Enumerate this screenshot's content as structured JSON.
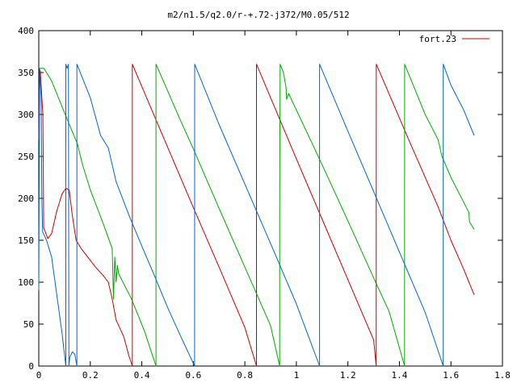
{
  "chart_data": {
    "type": "line",
    "title": "m2/n1.5/q2.0/r-+.72-j372/M0.05/512",
    "xlabel": "",
    "ylabel": "",
    "xlim": [
      0,
      1.8
    ],
    "ylim": [
      0,
      400
    ],
    "x_ticks": [
      0,
      0.2,
      0.4,
      0.6,
      0.8,
      1,
      1.2,
      1.4,
      1.6,
      1.8
    ],
    "x_tick_labels": [
      "0",
      "0.2",
      "0.4",
      "0.6",
      "0.8",
      "1",
      "1.2",
      "1.4",
      "1.6",
      "1.8"
    ],
    "y_ticks": [
      0,
      50,
      100,
      150,
      200,
      250,
      300,
      350,
      400
    ],
    "y_tick_labels": [
      "0",
      "50",
      "100",
      "150",
      "200",
      "250",
      "300",
      "350",
      "400"
    ],
    "grid": false,
    "legend": {
      "position": "top-right",
      "entries": [
        "fort.23"
      ]
    },
    "series": [
      {
        "name": "fort.23",
        "color": "#cc0000",
        "points": [
          [
            0.0,
            270
          ],
          [
            0.003,
            340
          ],
          [
            0.006,
            352
          ],
          [
            0.012,
            320
          ],
          [
            0.016,
            300
          ],
          [
            0.019,
            165
          ],
          [
            0.025,
            160
          ],
          [
            0.035,
            152
          ],
          [
            0.05,
            158
          ],
          [
            0.07,
            185
          ],
          [
            0.09,
            205
          ],
          [
            0.105,
            212
          ],
          [
            0.118,
            210
          ],
          [
            0.13,
            180
          ],
          [
            0.145,
            150
          ],
          [
            0.165,
            140
          ],
          [
            0.19,
            130
          ],
          [
            0.22,
            118
          ],
          [
            0.25,
            108
          ],
          [
            0.27,
            100
          ],
          [
            0.285,
            80
          ],
          [
            0.3,
            55
          ],
          [
            0.33,
            35
          ],
          [
            0.35,
            12
          ],
          [
            0.363,
            0
          ],
          [
            0.3631,
            360
          ],
          [
            0.46,
            290
          ],
          [
            0.6,
            189
          ],
          [
            0.7,
            118
          ],
          [
            0.8,
            46
          ],
          [
            0.845,
            0
          ],
          [
            0.8451,
            360
          ],
          [
            1.0,
            247
          ],
          [
            1.1,
            175
          ],
          [
            1.2,
            103
          ],
          [
            1.3,
            31
          ],
          [
            1.31,
            0
          ],
          [
            1.3101,
            360
          ],
          [
            1.45,
            260
          ],
          [
            1.55,
            190
          ],
          [
            1.6,
            150
          ],
          [
            1.65,
            115
          ],
          [
            1.69,
            85
          ]
        ]
      },
      {
        "color": "#00aa00",
        "points": [
          [
            0.0,
            355
          ],
          [
            0.02,
            355
          ],
          [
            0.05,
            340
          ],
          [
            0.1,
            302
          ],
          [
            0.15,
            265
          ],
          [
            0.17,
            240
          ],
          [
            0.2,
            210
          ],
          [
            0.25,
            170
          ],
          [
            0.285,
            140
          ],
          [
            0.29,
            80
          ],
          [
            0.295,
            130
          ],
          [
            0.3,
            100
          ],
          [
            0.305,
            120
          ],
          [
            0.31,
            110
          ],
          [
            0.36,
            80
          ],
          [
            0.41,
            42
          ],
          [
            0.455,
            0
          ],
          [
            0.4551,
            360
          ],
          [
            0.55,
            293
          ],
          [
            0.6,
            259
          ],
          [
            0.7,
            188
          ],
          [
            0.8,
            118
          ],
          [
            0.9,
            48
          ],
          [
            0.935,
            0
          ],
          [
            0.9351,
            180
          ],
          [
            0.937,
            360
          ],
          [
            0.95,
            350
          ],
          [
            0.96,
            332
          ],
          [
            0.962,
            318
          ],
          [
            0.97,
            325
          ],
          [
            1.1,
            240
          ],
          [
            1.2,
            173
          ],
          [
            1.3,
            105
          ],
          [
            1.36,
            65
          ],
          [
            1.42,
            0
          ],
          [
            1.4201,
            360
          ],
          [
            1.5,
            300
          ],
          [
            1.55,
            270
          ],
          [
            1.565,
            250
          ],
          [
            1.6,
            225
          ],
          [
            1.65,
            195
          ],
          [
            1.67,
            183
          ],
          [
            1.672,
            172
          ],
          [
            1.69,
            163
          ]
        ]
      },
      {
        "color": "#0066cc",
        "points": [
          [
            0.0,
            90
          ],
          [
            0.003,
            355
          ],
          [
            0.006,
            340
          ],
          [
            0.009,
            320
          ],
          [
            0.012,
            200
          ],
          [
            0.015,
            160
          ],
          [
            0.03,
            150
          ],
          [
            0.05,
            130
          ],
          [
            0.07,
            85
          ],
          [
            0.09,
            40
          ],
          [
            0.105,
            0
          ],
          [
            0.1051,
            360
          ],
          [
            0.11,
            355
          ],
          [
            0.115,
            360
          ],
          [
            0.117,
            0
          ],
          [
            0.12,
            10
          ],
          [
            0.13,
            17
          ],
          [
            0.14,
            14
          ],
          [
            0.148,
            0
          ],
          [
            0.1481,
            360
          ],
          [
            0.2,
            320
          ],
          [
            0.24,
            275
          ],
          [
            0.27,
            260
          ],
          [
            0.3,
            220
          ],
          [
            0.35,
            180
          ],
          [
            0.4,
            143
          ],
          [
            0.45,
            107
          ],
          [
            0.5,
            70
          ],
          [
            0.55,
            36
          ],
          [
            0.605,
            0
          ],
          [
            0.6051,
            360
          ],
          [
            0.7,
            288
          ],
          [
            0.8,
            217
          ],
          [
            0.9,
            146
          ],
          [
            1.0,
            74
          ],
          [
            1.09,
            0
          ],
          [
            1.0901,
            360
          ],
          [
            1.2,
            280
          ],
          [
            1.3,
            208
          ],
          [
            1.4,
            136
          ],
          [
            1.5,
            64
          ],
          [
            1.57,
            0
          ],
          [
            1.5701,
            360
          ],
          [
            1.6,
            335
          ],
          [
            1.65,
            305
          ],
          [
            1.69,
            275
          ]
        ]
      }
    ]
  }
}
